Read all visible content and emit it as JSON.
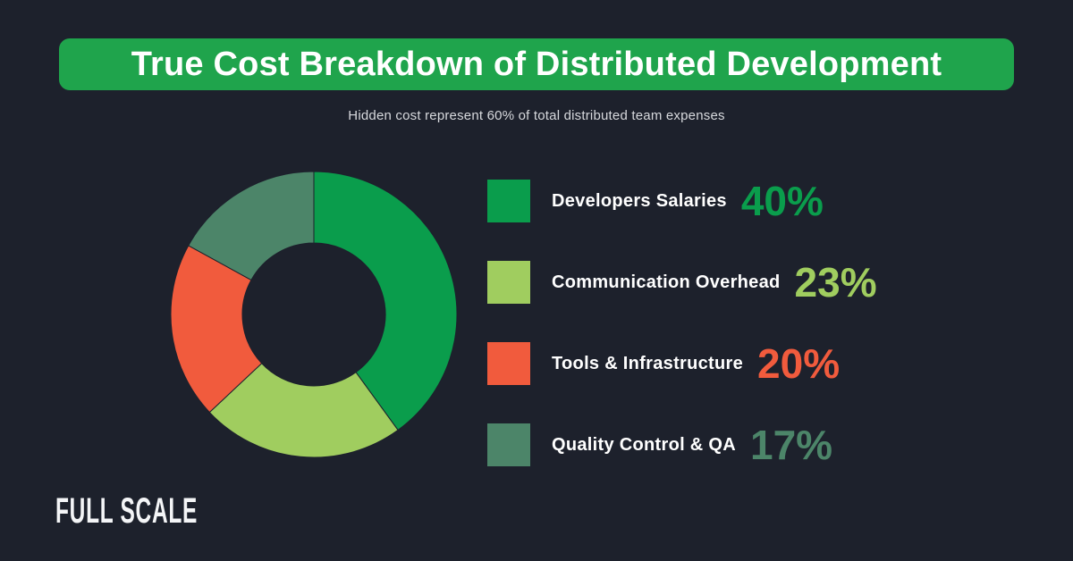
{
  "page": {
    "background": "#1D212C"
  },
  "banner": {
    "title": "True Cost Breakdown of Distributed Development",
    "background": "#1FA44C",
    "text_color": "#FFFFFF"
  },
  "subtitle": "Hidden cost represent 60% of total distributed team expenses",
  "chart_data": {
    "type": "pie",
    "variant": "donut",
    "title": "True Cost Breakdown of Distributed Development",
    "categories": [
      "Developers Salaries",
      "Communication Overhead",
      "Tools & Infrastructure",
      "Quality Control & QA"
    ],
    "values": [
      40,
      23,
      20,
      17
    ],
    "value_labels": [
      "40%",
      "23%",
      "20%",
      "17%"
    ],
    "colors": [
      "#0A9D4C",
      "#A0CD5F",
      "#F15B3D",
      "#4C8569"
    ],
    "legend_position": "right",
    "start_angle_deg": 0,
    "direction": "clockwise",
    "inner_radius_ratio": 0.5,
    "annotation": "Hidden cost represent 60% of total distributed team expenses"
  },
  "logo": {
    "text": "FULL SCALE"
  }
}
